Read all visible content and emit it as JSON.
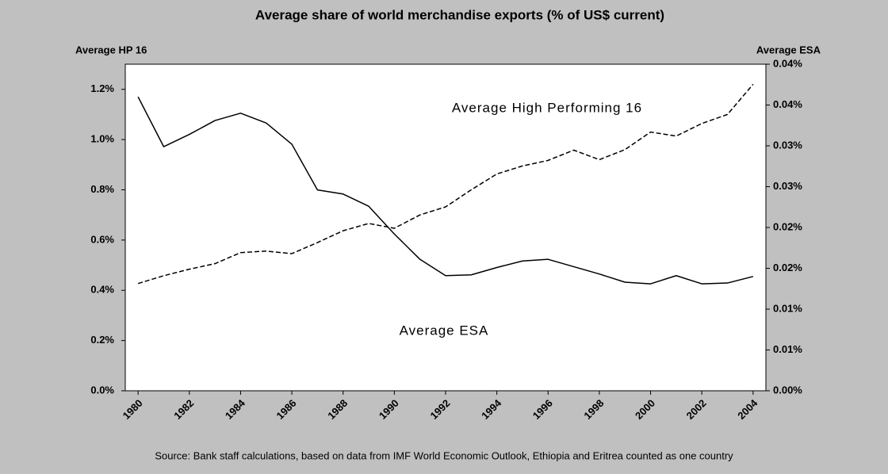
{
  "chart_data": {
    "type": "line",
    "title": "Average share of world merchandise exports (% of US$ current)",
    "y_label": "Average HP 16",
    "y2_label": "Average ESA",
    "source": "Source: Bank staff calculations, based on data from IMF World Economic Outlook, Ethiopia and Eritrea counted as one country",
    "annotations": [
      "Average High Performing 16",
      "Average ESA"
    ],
    "x": [
      1980,
      1981,
      1982,
      1983,
      1984,
      1985,
      1986,
      1987,
      1988,
      1989,
      1990,
      1991,
      1992,
      1993,
      1994,
      1995,
      1996,
      1997,
      1998,
      1999,
      2000,
      2001,
      2002,
      2003,
      2004
    ],
    "xlim": [
      1979.5,
      2004.5
    ],
    "xticks": [
      1980,
      1982,
      1984,
      1986,
      1988,
      1990,
      1992,
      1994,
      1996,
      1998,
      2000,
      2002,
      2004
    ],
    "ylim": [
      0,
      1.3
    ],
    "yticks": [
      {
        "value": 0,
        "label": "0.0%"
      },
      {
        "value": 0.2,
        "label": "0.2%"
      },
      {
        "value": 0.4,
        "label": "0.4%"
      },
      {
        "value": 0.6,
        "label": "0.6%"
      },
      {
        "value": 0.8,
        "label": "0.8%"
      },
      {
        "value": 1.0,
        "label": "1.0%"
      },
      {
        "value": 1.2,
        "label": "1.2%"
      }
    ],
    "y2lim": [
      0,
      0.04
    ],
    "y2ticks": [
      {
        "value": 0,
        "label": "0.00%"
      },
      {
        "value": 0.005,
        "label": "0.01%"
      },
      {
        "value": 0.01,
        "label": "0.01%"
      },
      {
        "value": 0.015,
        "label": "0.02%"
      },
      {
        "value": 0.02,
        "label": "0.02%"
      },
      {
        "value": 0.025,
        "label": "0.03%"
      },
      {
        "value": 0.03,
        "label": "0.03%"
      },
      {
        "value": 0.035,
        "label": "0.04%"
      },
      {
        "value": 0.04,
        "label": "0.04%"
      }
    ],
    "series": [
      {
        "name": "Average High Performing 16",
        "color": "#000000",
        "dash": true,
        "values": [
          0.427,
          0.458,
          0.484,
          0.506,
          0.55,
          0.556,
          0.546,
          0.59,
          0.637,
          0.666,
          0.647,
          0.7,
          0.732,
          0.8,
          0.863,
          0.895,
          0.917,
          0.958,
          0.92,
          0.96,
          1.03,
          1.014,
          1.064,
          1.1,
          1.22
        ]
      },
      {
        "name": "Average ESA",
        "color": "#000000",
        "dash": false,
        "axis": "y2",
        "values": [
          0.036,
          0.0299,
          0.0314,
          0.0331,
          0.034,
          0.0328,
          0.0302,
          0.0246,
          0.0241,
          0.0226,
          0.0192,
          0.0161,
          0.0141,
          0.0142,
          0.0151,
          0.0159,
          0.0161,
          0.0152,
          0.0143,
          0.0133,
          0.0131,
          0.0141,
          0.0131,
          0.0132,
          0.014
        ]
      }
    ]
  }
}
